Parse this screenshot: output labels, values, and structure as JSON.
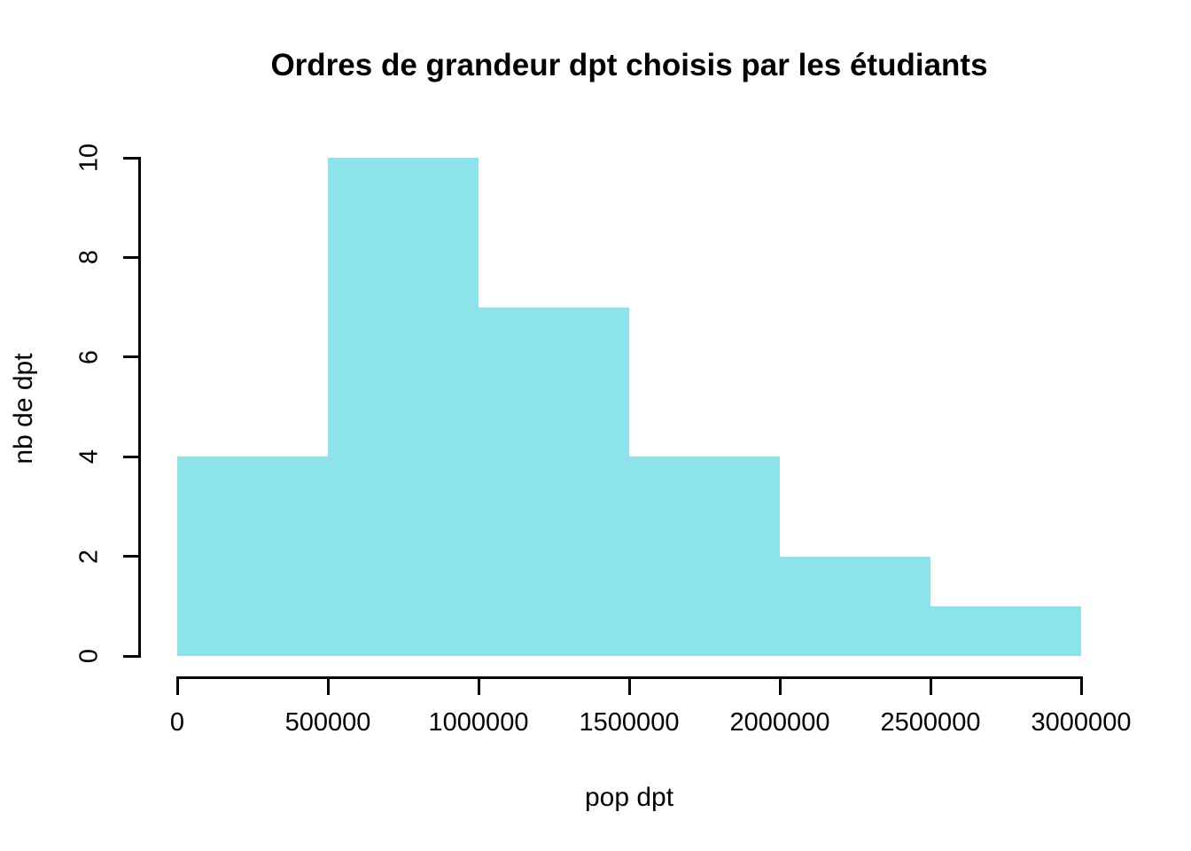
{
  "chart_data": {
    "type": "bar",
    "subtype": "histogram",
    "title": "Ordres de grandeur dpt choisis par les étudiants",
    "xlabel": "pop dpt",
    "ylabel": "nb de dpt",
    "bin_edges": [
      0,
      500000,
      1000000,
      1500000,
      2000000,
      2500000,
      3000000
    ],
    "counts": [
      4,
      10,
      7,
      4,
      2,
      1
    ],
    "x_ticks": [
      0,
      500000,
      1000000,
      1500000,
      2000000,
      2500000,
      3000000
    ],
    "x_tick_labels": [
      "0",
      "500000",
      "1000000",
      "1500000",
      "2000000",
      "2500000",
      "3000000"
    ],
    "y_ticks": [
      0,
      2,
      4,
      6,
      8,
      10
    ],
    "y_tick_labels": [
      "0",
      "2",
      "4",
      "6",
      "8",
      "10"
    ],
    "xlim": [
      0,
      3000000
    ],
    "ylim": [
      0,
      10
    ],
    "bar_color": "#8DE3EA",
    "bar_borders": false,
    "axis_color": "#000000",
    "text_color": "#000000",
    "background_color": "#FFFFFF",
    "grid": false,
    "legend": false
  }
}
